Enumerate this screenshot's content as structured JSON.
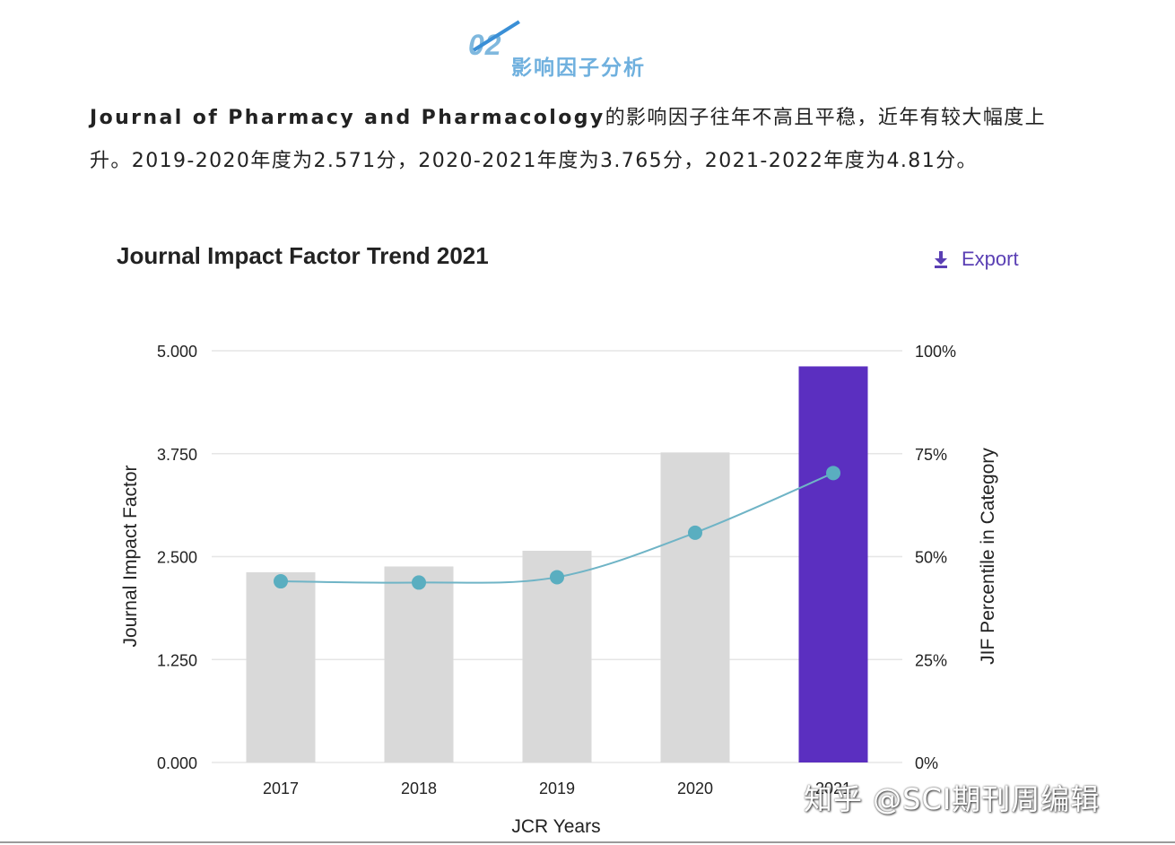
{
  "section": {
    "number": "02",
    "title": "影响因子分析"
  },
  "paragraph": {
    "journal": "Journal of Pharmacy and Pharmacology",
    "text1": "的影响因子往年不高且平稳，近年有较大幅度上升。2019-2020年度为2.571分，2020-2021年度为3.765分，2021-2022年度为4.81分。"
  },
  "export": {
    "label": "Export",
    "icon": "download-icon"
  },
  "watermark": "知乎 @SCI期刊周编辑",
  "colors": {
    "bar": "#d9d9d9",
    "bar_highlight": "#5b2fc0",
    "line": "#6fb4c6",
    "point": "#5aaec0",
    "grid": "#e6e6e6",
    "accent": "#5a3fb4"
  },
  "chart_data": {
    "type": "bar",
    "title": "Journal Impact Factor Trend 2021",
    "categories": [
      "2017",
      "2018",
      "2019",
      "2020",
      "2021"
    ],
    "xlabel": "JCR Years",
    "ylabel": "Journal Impact Factor",
    "ylabel_right": "JIF Percentile in Category",
    "ylim": [
      0,
      5
    ],
    "ylim_right": [
      0,
      100
    ],
    "yticks": [
      "5.000",
      "3.750",
      "2.500",
      "1.250",
      "0.000"
    ],
    "yticks_right": [
      "100%",
      "75%",
      "50%",
      "25%",
      "0%"
    ],
    "grid": true,
    "highlight_category": "2021",
    "series": [
      {
        "name": "Journal Impact Factor",
        "kind": "bar",
        "axis": "left",
        "values": [
          2.31,
          2.38,
          2.571,
          3.765,
          4.81
        ]
      },
      {
        "name": "JIF Percentile in Category",
        "kind": "line",
        "axis": "right",
        "values": [
          44,
          43.7,
          45,
          55.8,
          70.3
        ]
      }
    ]
  }
}
